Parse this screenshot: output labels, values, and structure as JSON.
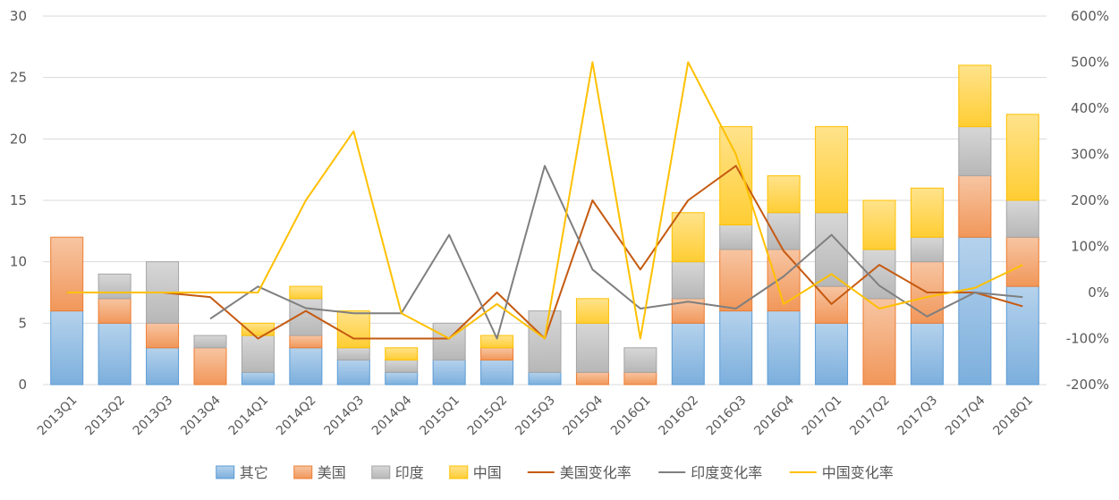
{
  "chart_data": {
    "type": "bar",
    "categories": [
      "2013Q1",
      "2013Q2",
      "2013Q3",
      "2013Q4",
      "2014Q1",
      "2014Q2",
      "2014Q3",
      "2014Q4",
      "2015Q1",
      "2015Q2",
      "2015Q3",
      "2015Q4",
      "2016Q1",
      "2016Q2",
      "2016Q3",
      "2016Q4",
      "2017Q1",
      "2017Q2",
      "2017Q3",
      "2017Q4",
      "2018Q1"
    ],
    "bar_series": [
      {
        "name": "其它",
        "color": "#5b9bd5",
        "values": [
          6,
          5,
          3,
          0,
          1,
          3,
          2,
          1,
          2,
          2,
          1,
          0,
          0,
          5,
          6,
          6,
          5,
          0,
          5,
          12,
          8
        ]
      },
      {
        "name": "美国",
        "color": "#ed7d31",
        "values": [
          6,
          2,
          2,
          3,
          0,
          1,
          0,
          0,
          0,
          1,
          0,
          1,
          1,
          2,
          5,
          5,
          3,
          7,
          5,
          5,
          4
        ]
      },
      {
        "name": "印度",
        "color": "#a5a5a5",
        "values": [
          0,
          2,
          5,
          1,
          3,
          3,
          1,
          1,
          3,
          0,
          5,
          4,
          2,
          3,
          2,
          3,
          6,
          4,
          2,
          4,
          3
        ]
      },
      {
        "name": "中国",
        "color": "#ffc000",
        "values": [
          0,
          0,
          0,
          0,
          1,
          1,
          3,
          1,
          0,
          1,
          0,
          2,
          0,
          4,
          8,
          3,
          7,
          4,
          4,
          5,
          7
        ]
      }
    ],
    "line_series": [
      {
        "name": "美国变化率",
        "color": "#c55a11",
        "values": [
          0,
          0,
          0,
          -10,
          -100,
          -40,
          -100,
          -100,
          -100,
          0,
          -100,
          200,
          50,
          200,
          275,
          90,
          -25,
          60,
          0,
          0,
          -30
        ]
      },
      {
        "name": "印度变化率",
        "color": "#7f7f7f",
        "values": [
          null,
          null,
          null,
          -57,
          13,
          -34,
          -45,
          -45,
          125,
          -100,
          275,
          50,
          -35,
          -20,
          -35,
          35,
          125,
          15,
          -52,
          0,
          -10
        ]
      },
      {
        "name": "中国变化率",
        "color": "#ffc000",
        "values": [
          0,
          0,
          0,
          0,
          0,
          200,
          350,
          -45,
          -100,
          -25,
          -100,
          500,
          -100,
          500,
          300,
          -25,
          40,
          -35,
          -10,
          10,
          60
        ]
      }
    ],
    "y_left": {
      "min": 0,
      "max": 30,
      "ticks": [
        "0",
        "5",
        "10",
        "15",
        "20",
        "25",
        "30"
      ]
    },
    "y_right": {
      "min": -200,
      "max": 600,
      "ticks": [
        "-200%",
        "-100%",
        "0%",
        "100%",
        "200%",
        "300%",
        "400%",
        "500%",
        "600%"
      ]
    },
    "grid": true,
    "legend_position": "bottom"
  }
}
